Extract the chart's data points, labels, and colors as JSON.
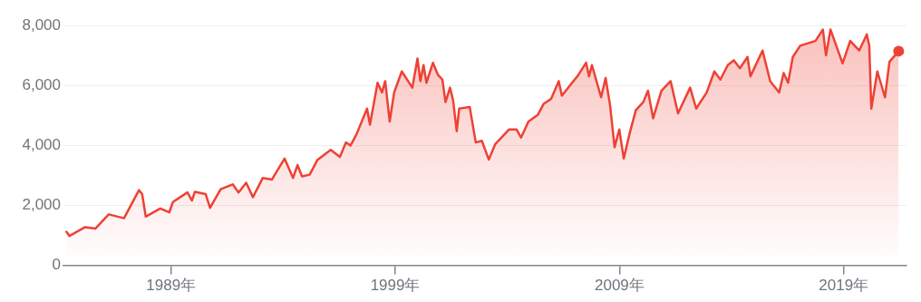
{
  "chart_data": {
    "type": "area",
    "xlim": [
      1984.2,
      2021.8
    ],
    "xticks": [
      {
        "value": 1989,
        "label": "1989年"
      },
      {
        "value": 1999,
        "label": "1999年"
      },
      {
        "value": 2009,
        "label": "2009年"
      },
      {
        "value": 2019,
        "label": "2019年"
      }
    ],
    "ylim": [
      0,
      8000
    ],
    "yticks": [
      {
        "value": 0,
        "label": "0"
      },
      {
        "value": 2000,
        "label": "2,000"
      },
      {
        "value": 4000,
        "label": "4,000"
      },
      {
        "value": 6000,
        "label": "6,000"
      },
      {
        "value": 8000,
        "label": "8,000"
      }
    ],
    "grid": "y",
    "legend": false,
    "series": [
      {
        "color": "#ee4135",
        "x": [
          1984.31,
          1984.47,
          1985.15,
          1985.62,
          1986.22,
          1986.9,
          1987.57,
          1987.71,
          1987.87,
          1988.52,
          1988.92,
          1989.08,
          1989.73,
          1989.93,
          1990.06,
          1990.54,
          1990.74,
          1991.21,
          1991.75,
          1992.01,
          1992.35,
          1992.65,
          1993.09,
          1993.5,
          1994.06,
          1994.44,
          1994.64,
          1994.84,
          1995.18,
          1995.52,
          1996.12,
          1996.53,
          1996.8,
          1997.0,
          1997.27,
          1997.74,
          1997.87,
          1998.21,
          1998.41,
          1998.55,
          1998.75,
          1998.95,
          1999.29,
          1999.76,
          1999.99,
          2000.12,
          2000.26,
          2000.39,
          2000.68,
          2000.9,
          2001.1,
          2001.24,
          2001.44,
          2001.58,
          2001.74,
          2001.85,
          2002.32,
          2002.59,
          2002.86,
          2003.17,
          2003.46,
          2004.07,
          2004.41,
          2004.61,
          2004.94,
          2005.35,
          2005.62,
          2005.95,
          2006.29,
          2006.43,
          2006.83,
          2007.17,
          2007.51,
          2007.64,
          2007.77,
          2008.18,
          2008.38,
          2008.58,
          2008.78,
          2008.99,
          2009.19,
          2009.46,
          2009.73,
          2010.06,
          2010.27,
          2010.5,
          2010.87,
          2011.28,
          2011.61,
          2012.15,
          2012.42,
          2012.89,
          2013.23,
          2013.5,
          2013.83,
          2014.1,
          2014.37,
          2014.71,
          2014.84,
          2015.38,
          2015.72,
          2016.12,
          2016.32,
          2016.52,
          2016.73,
          2017.06,
          2017.74,
          2018.07,
          2018.21,
          2018.41,
          2018.95,
          2019.29,
          2019.69,
          2020.03,
          2020.14,
          2020.23,
          2020.5,
          2020.84,
          2021.04,
          2021.45
        ],
        "values": [
          1142,
          981,
          1271,
          1226,
          1700,
          1571,
          2507,
          2378,
          1626,
          1894,
          1765,
          2110,
          2432,
          2161,
          2452,
          2378,
          1916,
          2539,
          2700,
          2432,
          2755,
          2271,
          2916,
          2861,
          3561,
          2916,
          3345,
          2968,
          3023,
          3507,
          3852,
          3613,
          4097,
          3991,
          4368,
          5226,
          4691,
          6088,
          5765,
          6142,
          4797,
          5765,
          6465,
          5926,
          6894,
          6142,
          6678,
          6088,
          6755,
          6355,
          6194,
          5442,
          5926,
          5497,
          4474,
          5226,
          5281,
          4097,
          4152,
          3529,
          4045,
          4529,
          4529,
          4258,
          4797,
          5013,
          5387,
          5549,
          6142,
          5658,
          6033,
          6355,
          6755,
          6303,
          6678,
          5604,
          6249,
          5336,
          3936,
          4529,
          3561,
          4420,
          5175,
          5442,
          5820,
          4903,
          5820,
          6142,
          5065,
          5926,
          5226,
          5765,
          6465,
          6194,
          6678,
          6839,
          6571,
          6949,
          6303,
          7162,
          6142,
          5765,
          6410,
          6088,
          6949,
          7323,
          7484,
          7862,
          7000,
          7862,
          6733,
          7484,
          7162,
          7700,
          7323,
          5226,
          6465,
          5604,
          6787,
          7142
        ]
      }
    ]
  }
}
